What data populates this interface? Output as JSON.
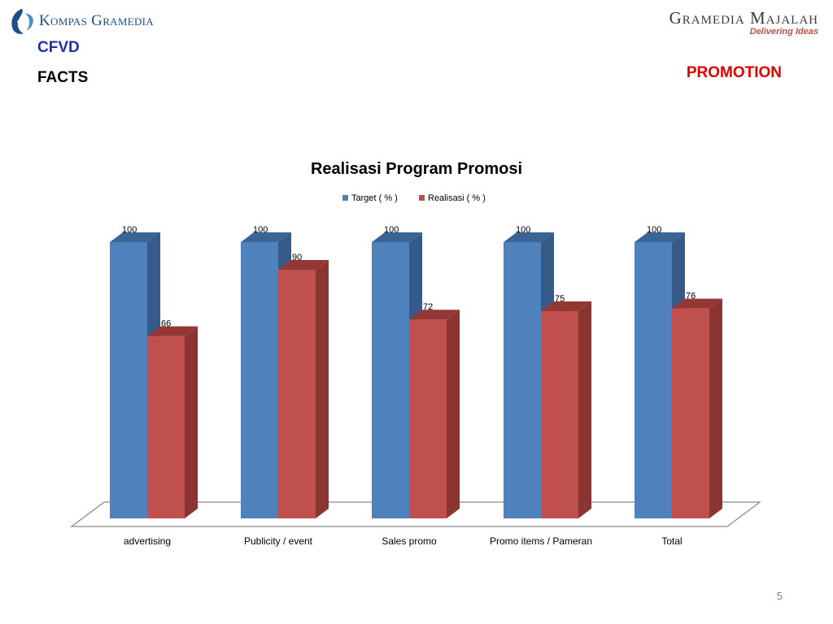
{
  "header": {
    "left_logo": "Kompas Gramedia",
    "right_logo": "Gramedia Majalah",
    "right_tagline": "Delivering Ideas",
    "subtitle_1": "CFVD",
    "subtitle_2": "FACTS",
    "section": "PROMOTION"
  },
  "page_number": "5",
  "colors": {
    "target": "#4f81bd",
    "realisasi": "#c0504d",
    "accent_blue": "#1f2fb0",
    "accent_red": "#e00000"
  },
  "chart_data": {
    "type": "bar",
    "title": "Realisasi Program Promosi",
    "categories": [
      "advertising",
      "Publicity / event",
      "Sales promo",
      "Promo items / Pameran",
      "Total"
    ],
    "series": [
      {
        "name": "Target ( % )",
        "values": [
          100,
          100,
          100,
          100,
          100
        ]
      },
      {
        "name": "Realisasi ( % )",
        "values": [
          66,
          90,
          72,
          75,
          76
        ]
      }
    ],
    "xlabel": "",
    "ylabel": "",
    "ylim": [
      0,
      100
    ],
    "grid": false,
    "legend": "top",
    "three_d": true
  }
}
